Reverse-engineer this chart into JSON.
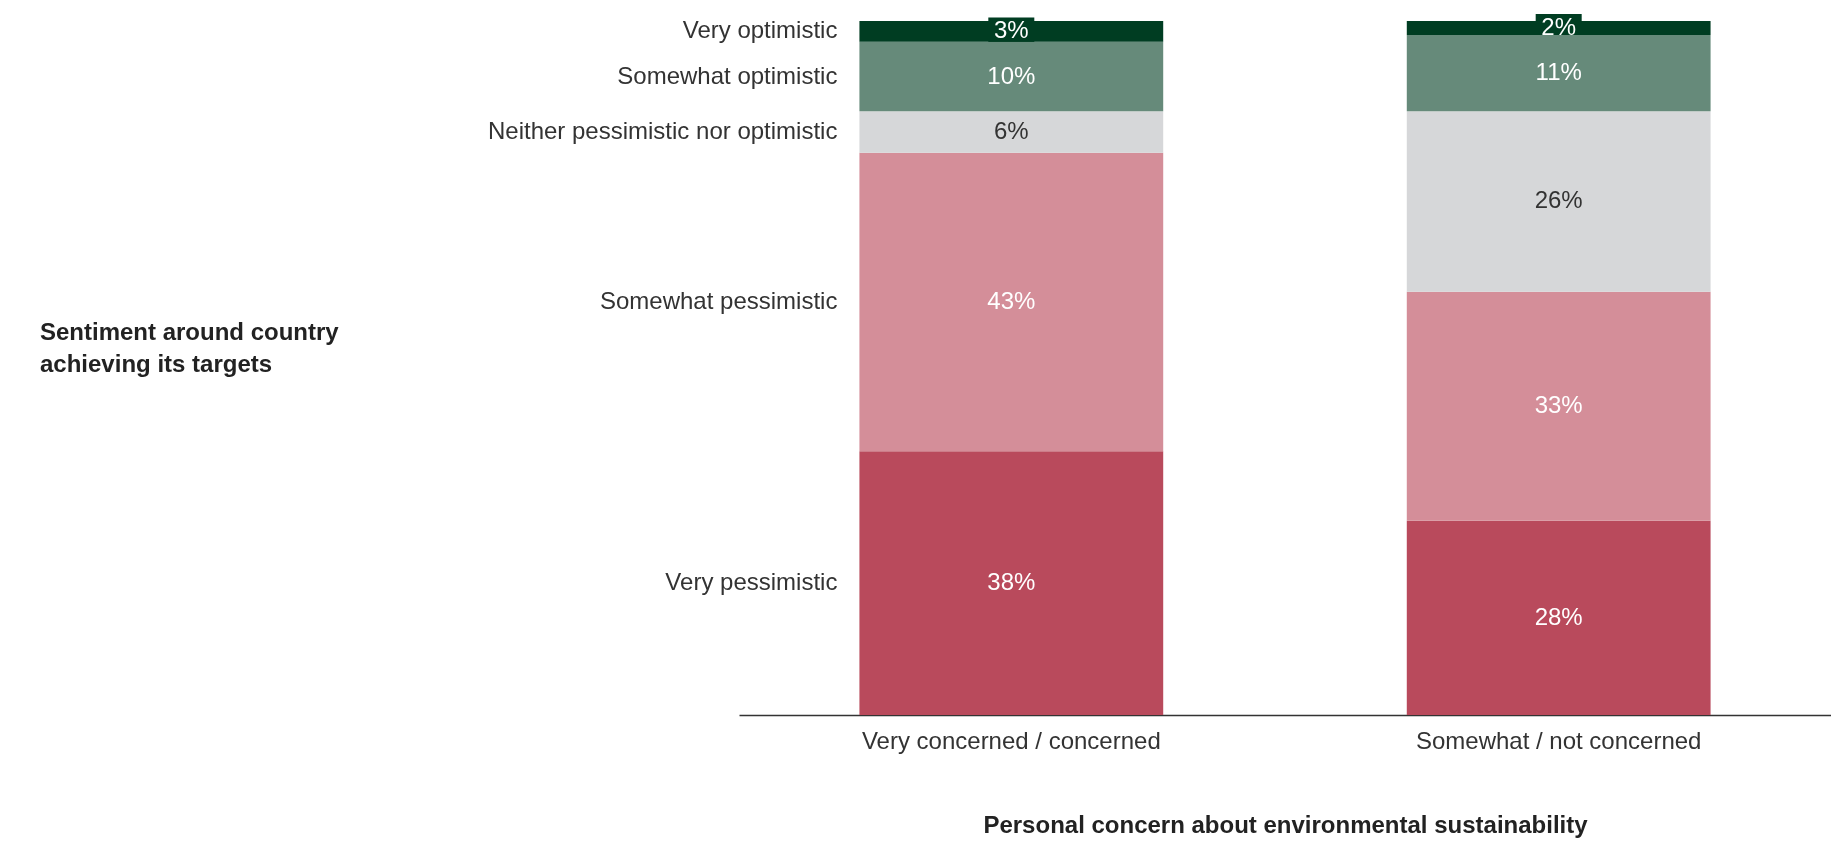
{
  "chart_data": {
    "type": "bar",
    "stacked": true,
    "tick_labels": "x",
    "grid": false,
    "xlabel": "Personal concern about environmental sustainability",
    "annotations": [
      "Sentiment around country achieving its targets"
    ],
    "categories": [
      "Very concerned / concerned",
      "Somewhat / not concerned"
    ],
    "series": [
      {
        "name": "Very pessimistic",
        "color": "#b94a5c",
        "values": [
          38,
          28
        ],
        "value_labels": [
          "38%",
          "28%"
        ]
      },
      {
        "name": "Somewhat pessimistic",
        "color": "#d48e99",
        "values": [
          43,
          33
        ],
        "value_labels": [
          "43%",
          "33%"
        ]
      },
      {
        "name": "Neither pessimistic nor optimistic",
        "color": "#d6d7d9",
        "values": [
          6,
          26
        ],
        "value_labels": [
          "6%",
          "26%"
        ]
      },
      {
        "name": "Somewhat optimistic",
        "color": "#668a7a",
        "values": [
          10,
          11
        ],
        "value_labels": [
          "10%",
          "11%"
        ]
      },
      {
        "name": "Very optimistic",
        "color": "#003d22",
        "values": [
          3,
          2
        ],
        "value_labels": [
          "3%",
          "2%"
        ]
      }
    ]
  }
}
